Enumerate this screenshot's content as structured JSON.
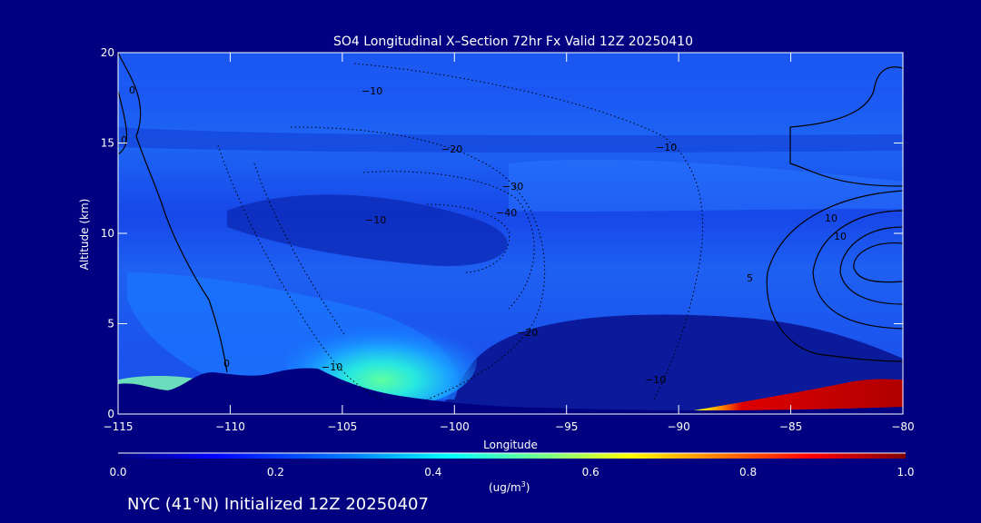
{
  "chart_data": {
    "type": "heatmap",
    "title": "SO4 Longitudinal X–Section 72hr  Fx Valid 12Z 20250410",
    "xlabel": "Longitude",
    "ylabel": "Altitude (km)",
    "xlim": [
      -115,
      -80
    ],
    "ylim": [
      0,
      20
    ],
    "x_ticks": [
      -115,
      -110,
      -105,
      -100,
      -95,
      -90,
      -85,
      -80
    ],
    "x_tick_labels": [
      "−115",
      "−110",
      "−105",
      "−100",
      "−95",
      "−90",
      "−85",
      "−80"
    ],
    "y_ticks": [
      0,
      5,
      10,
      15,
      20
    ],
    "y_tick_labels": [
      "0",
      "5",
      "10",
      "15",
      "20"
    ],
    "colorbar": {
      "min": 0.0,
      "max": 1.0,
      "ticks": [
        0.0,
        0.2,
        0.4,
        0.6,
        0.8,
        1.0
      ],
      "tick_labels": [
        "0.0",
        "0.2",
        "0.4",
        "0.6",
        "0.8",
        "1.0"
      ],
      "units_main": "(ug/m",
      "units_sup": "3",
      "units_end": ")",
      "colormap": [
        "#00007f",
        "#0000ff",
        "#007fff",
        "#00ffff",
        "#7fff7f",
        "#ffff00",
        "#ff7f00",
        "#ff0000",
        "#7f0000"
      ]
    },
    "contour_labels": [
      "0",
      "0",
      "0",
      "−10",
      "−10",
      "−20",
      "−30",
      "−40",
      "−10",
      "−20",
      "−10",
      "−10",
      "10",
      "10",
      "5"
    ],
    "colors": {
      "background": "#000080",
      "text": "#ffffff",
      "contour": "#000000"
    }
  },
  "footer": {
    "caption": "NYC (41°N) Initialized 12Z 20250407"
  }
}
